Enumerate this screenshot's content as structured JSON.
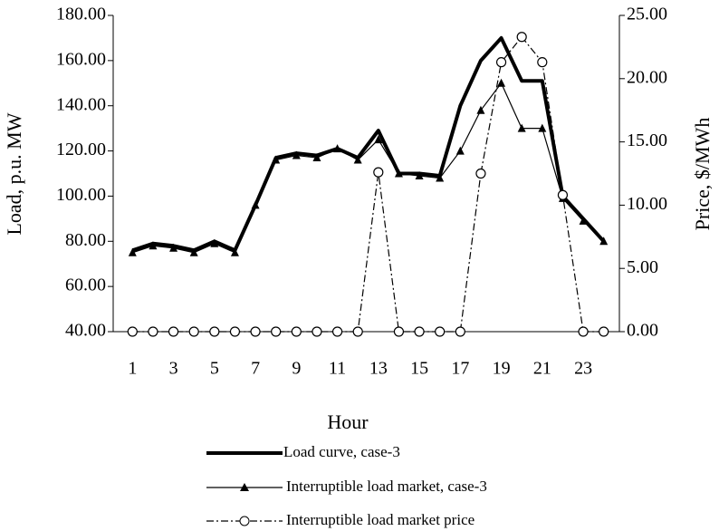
{
  "chart_data": {
    "type": "line",
    "x_label": "Hour",
    "y_label": "Load, p.u. MW",
    "y2_label": "Price, $/MWh",
    "categories": [
      "1",
      null,
      "3",
      null,
      "5",
      null,
      "7",
      null,
      "9",
      null,
      "11",
      null,
      "13",
      null,
      "15",
      null,
      "17",
      null,
      "19",
      null,
      "21",
      null,
      "23",
      null
    ],
    "series": [
      {
        "name": "Load curve, case-3",
        "color": "#000000",
        "values": [
          76,
          79,
          78,
          76,
          80,
          76,
          96,
          117,
          119,
          118,
          121,
          117,
          129,
          110,
          110,
          109,
          140,
          160,
          170,
          151,
          151,
          100,
          90,
          80
        ]
      },
      {
        "name": "Interruptible load market, case-3",
        "color": "#000000",
        "values": [
          75,
          78,
          77,
          75,
          79,
          75,
          96,
          116,
          118,
          117,
          121,
          116,
          125,
          110,
          109,
          108,
          120,
          138,
          150,
          130,
          130,
          99,
          89,
          80
        ]
      },
      {
        "name": "Interruptible load market price",
        "color": "#000000",
        "axis": "y2",
        "values": [
          0,
          0,
          0,
          0,
          0,
          0,
          0,
          0,
          0,
          0,
          0,
          0,
          12.6,
          0,
          0,
          0,
          0,
          12.5,
          21.3,
          23.3,
          21.3,
          10.8,
          0,
          0
        ]
      }
    ],
    "ylim": [
      40,
      180
    ],
    "yticks": [
      {
        "value": 40,
        "label": "40.00"
      },
      {
        "value": 60,
        "label": "60.00"
      },
      {
        "value": 80,
        "label": "80.00"
      },
      {
        "value": 100,
        "label": "100.00"
      },
      {
        "value": 120,
        "label": "120.00"
      },
      {
        "value": 140,
        "label": "140.00"
      },
      {
        "value": 160,
        "label": "160.00"
      },
      {
        "value": 180,
        "label": "180.00"
      }
    ],
    "y2lim": [
      0,
      25
    ],
    "y2ticks": [
      {
        "value": 0,
        "label": "0.00"
      },
      {
        "value": 5,
        "label": "5.00"
      },
      {
        "value": 10,
        "label": "10.00"
      },
      {
        "value": 15,
        "label": "15.00"
      },
      {
        "value": 20,
        "label": "20.00"
      },
      {
        "value": 25,
        "label": "25.00"
      }
    ],
    "grid": false
  }
}
